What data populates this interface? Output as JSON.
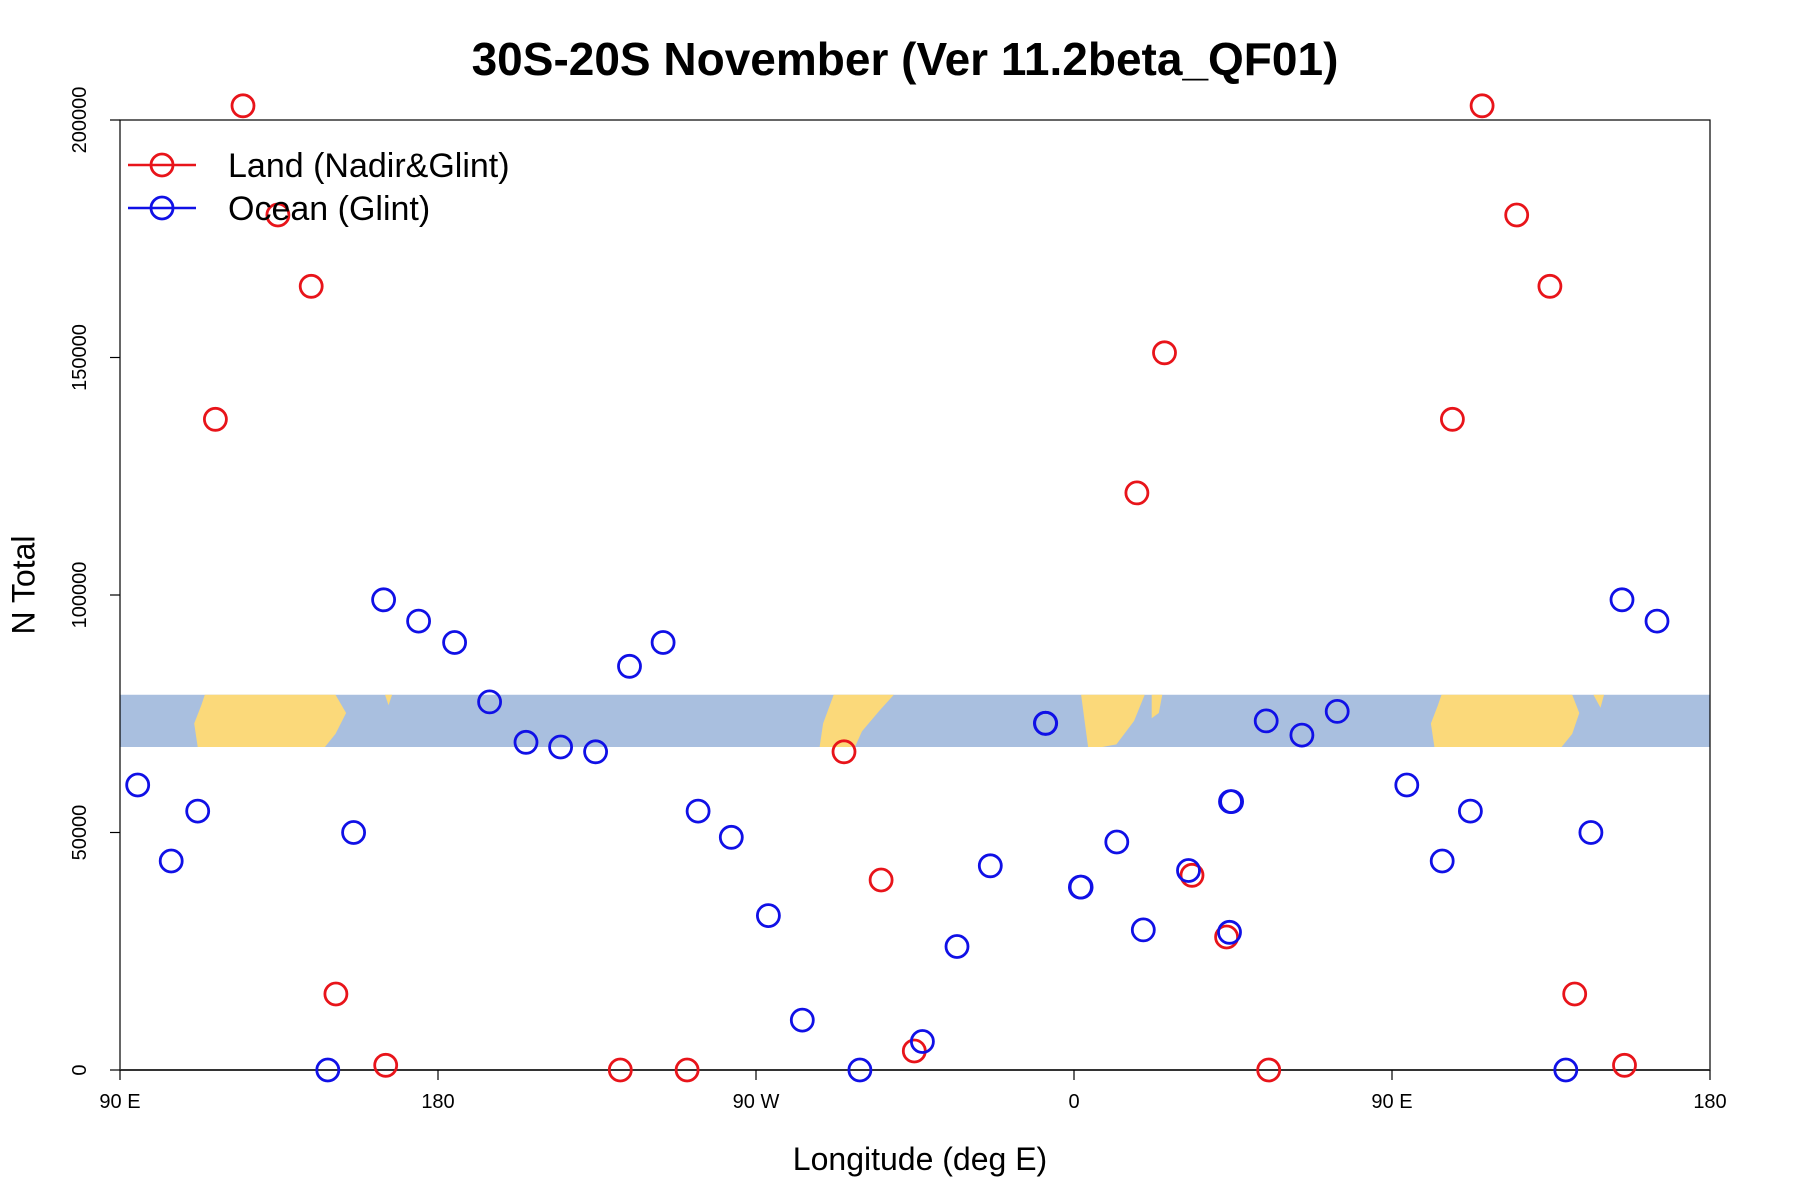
{
  "chart_data": {
    "type": "scatter",
    "title": "30S-20S November (Ver 11.2beta_QF01)",
    "xlabel": "Longitude (deg E)",
    "ylabel": "N Total",
    "xlim": [
      90,
      540
    ],
    "ylim": [
      0,
      200000
    ],
    "x_ticks": [
      {
        "value": 90,
        "label": "90 E"
      },
      {
        "value": 180,
        "label": "180"
      },
      {
        "value": 270,
        "label": "90 W"
      },
      {
        "value": 360,
        "label": "0"
      },
      {
        "value": 450,
        "label": "90 E"
      },
      {
        "value": 540,
        "label": "180"
      }
    ],
    "y_ticks": [
      {
        "value": 0,
        "label": "0"
      },
      {
        "value": 50000,
        "label": "50000"
      },
      {
        "value": 100000,
        "label": "100000"
      },
      {
        "value": 150000,
        "label": "150000"
      },
      {
        "value": 200000,
        "label": "200000"
      }
    ],
    "grid": false,
    "legend_position": "top-left",
    "map_strip": {
      "y_range": [
        68000,
        79000
      ],
      "ocean_color": "#a9bfdf",
      "land_color": "#fbd97a"
    },
    "series": [
      {
        "name": "Land (Nadir&Glint)",
        "color": "#e8141a",
        "points": [
          [
            124.8,
            203000
          ],
          [
            117.0,
            137000
          ],
          [
            134.7,
            180000
          ],
          [
            144.1,
            165000
          ],
          [
            151.1,
            16000
          ],
          [
            165.2,
            1000
          ],
          [
            231.6,
            0
          ],
          [
            250.5,
            0
          ],
          [
            294.9,
            67000
          ],
          [
            305.4,
            40000
          ],
          [
            314.8,
            4000
          ],
          [
            377.8,
            121500
          ],
          [
            385.6,
            151000
          ],
          [
            393.4,
            41000
          ],
          [
            403.2,
            28000
          ],
          [
            415.1,
            0
          ],
          [
            467.1,
            137000
          ],
          [
            475.5,
            203000
          ],
          [
            485.3,
            180000
          ],
          [
            494.7,
            165000
          ],
          [
            501.7,
            16000
          ],
          [
            515.8,
            1000
          ]
        ]
      },
      {
        "name": "Ocean (Glint)",
        "color": "#1010e6",
        "points": [
          [
            95.0,
            60000
          ],
          [
            104.5,
            44000
          ],
          [
            112.0,
            54500
          ],
          [
            148.8,
            0
          ],
          [
            156.1,
            50000
          ],
          [
            164.6,
            99000
          ],
          [
            174.5,
            94500
          ],
          [
            184.7,
            90000
          ],
          [
            194.6,
            77500
          ],
          [
            204.9,
            69000
          ],
          [
            214.7,
            68000
          ],
          [
            224.6,
            67000
          ],
          [
            234.2,
            85000
          ],
          [
            243.7,
            90000
          ],
          [
            253.6,
            54500
          ],
          [
            263.0,
            49000
          ],
          [
            273.5,
            32500
          ],
          [
            283.1,
            10500
          ],
          [
            299.4,
            0
          ],
          [
            317.1,
            6000
          ],
          [
            326.9,
            26000
          ],
          [
            336.3,
            43000
          ],
          [
            352.0,
            73000
          ],
          [
            351.9,
            73000
          ],
          [
            361.8,
            38500
          ],
          [
            362.0,
            38500
          ],
          [
            372.1,
            48000
          ],
          [
            379.6,
            29500
          ],
          [
            404.3,
            56500
          ],
          [
            404.6,
            56500
          ],
          [
            414.4,
            73500
          ],
          [
            424.5,
            70500
          ],
          [
            434.5,
            75500
          ],
          [
            392.4,
            42000
          ],
          [
            404.0,
            29000
          ],
          [
            454.2,
            60000
          ],
          [
            464.2,
            44000
          ],
          [
            472.2,
            54500
          ],
          [
            499.2,
            0
          ],
          [
            506.3,
            50000
          ],
          [
            515.1,
            99000
          ],
          [
            525.0,
            94500
          ]
        ]
      }
    ]
  }
}
